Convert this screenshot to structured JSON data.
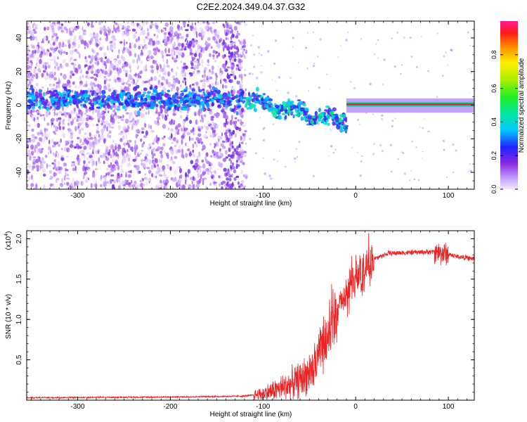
{
  "title": "C2E2.2024.349.04.37.G32",
  "chart_data": [
    {
      "type": "heatmap",
      "name": "spectrogram",
      "xlabel": "Height of straight line (km)",
      "ylabel": "Frequency (Hz)",
      "xlim": [
        -355,
        128
      ],
      "ylim": [
        -50,
        50
      ],
      "xticks": [
        -300,
        -200,
        -100,
        0,
        100
      ],
      "yticks": [
        -40,
        -20,
        0,
        20,
        40
      ],
      "colorbar": {
        "label": "Normalized spectral amplitude",
        "range": [
          0,
          1
        ],
        "ticks": [
          "0.0",
          "0.2",
          "0.4",
          "0.6",
          "0.8"
        ],
        "tick_values": [
          0,
          0.2,
          0.4,
          0.6,
          0.8
        ]
      },
      "features": {
        "noise_region_end_km": -120,
        "carrier_line_start_km": -10,
        "carrier_frequency_hz": 0.5
      }
    },
    {
      "type": "line",
      "name": "snr",
      "xlabel": "Height of straight line (km)",
      "ylabel": "SNR (10 * v/v)",
      "multiplier": "(x10",
      "multiplier_exp": "4",
      "multiplier_close": ")",
      "xlim": [
        -355,
        128
      ],
      "ylim": [
        0,
        2.1
      ],
      "xticks": [
        -300,
        -200,
        -100,
        0,
        100
      ],
      "yticks": [
        0.5,
        1.0,
        1.5,
        2.0
      ],
      "ytick_labels": [
        "0.5",
        "1.0",
        "1.5",
        "2.0"
      ],
      "color": "#ee2222",
      "profile": [
        [
          -355,
          0.03
        ],
        [
          -200,
          0.04
        ],
        [
          -120,
          0.05
        ],
        [
          -100,
          0.08
        ],
        [
          -80,
          0.15
        ],
        [
          -60,
          0.25
        ],
        [
          -45,
          0.4
        ],
        [
          -35,
          0.7
        ],
        [
          -25,
          1.0
        ],
        [
          -15,
          1.2
        ],
        [
          -5,
          1.4
        ],
        [
          5,
          1.6
        ],
        [
          20,
          1.75
        ],
        [
          35,
          1.82
        ],
        [
          60,
          1.83
        ],
        [
          85,
          1.84
        ],
        [
          95,
          1.82
        ],
        [
          110,
          1.78
        ],
        [
          128,
          1.75
        ]
      ]
    }
  ]
}
